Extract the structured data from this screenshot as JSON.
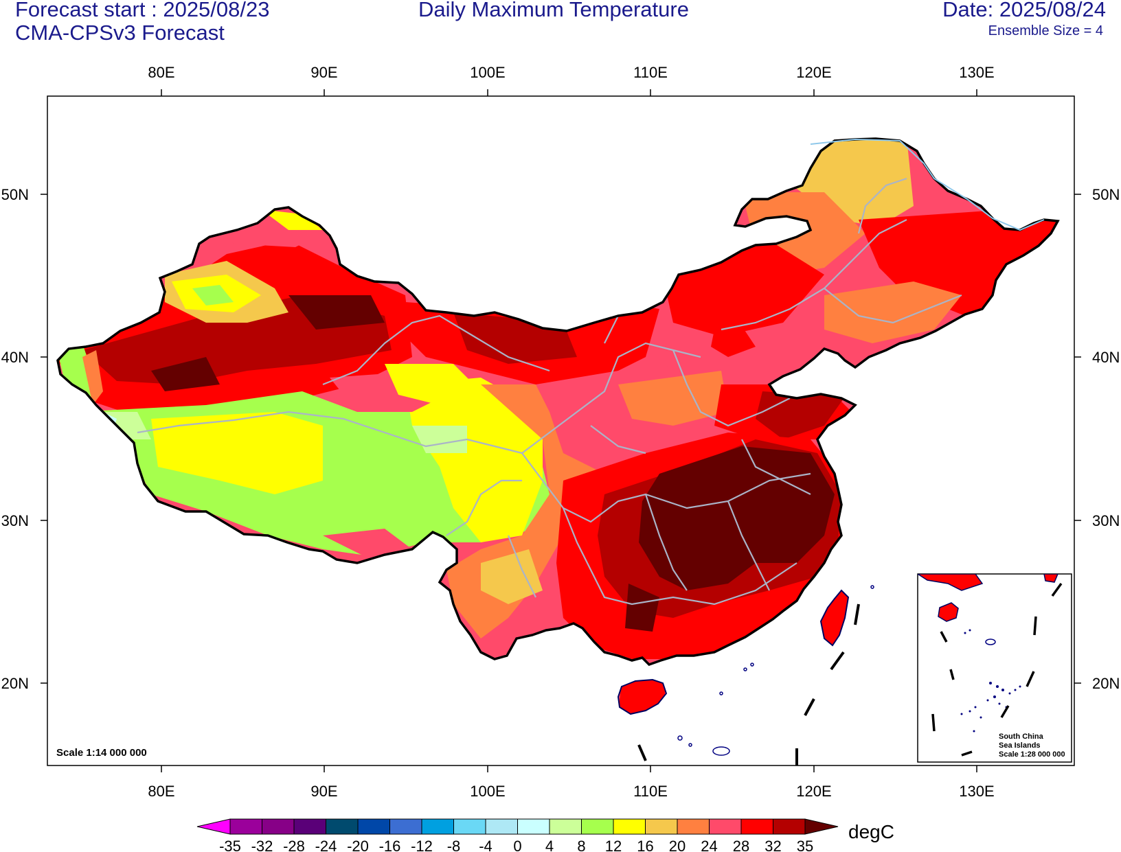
{
  "header": {
    "forecast_start": "Forecast start : 2025/08/23",
    "model": "CMA-CPSv3 Forecast",
    "title": "Daily Maximum Temperature",
    "date": "Date: 2025/08/24",
    "ensemble": "Ensemble Size = 4"
  },
  "map": {
    "lon_ticks": [
      "80E",
      "90E",
      "100E",
      "110E",
      "120E",
      "130E"
    ],
    "lat_ticks": [
      "50N",
      "40N",
      "30N",
      "20N"
    ],
    "scale_main": "Scale 1:14 000 000",
    "inset_title_1": "South China",
    "inset_title_2": "Sea Islands",
    "inset_scale": "Scale 1:28 000 000"
  },
  "colorbar": {
    "unit": "degC",
    "labels": [
      "-35",
      "-32",
      "-28",
      "-24",
      "-20",
      "-16",
      "-12",
      "-8",
      "-4",
      "0",
      "4",
      "8",
      "12",
      "16",
      "20",
      "24",
      "28",
      "32",
      "35"
    ],
    "colors": [
      "#ff00ff",
      "#9b009b",
      "#870087",
      "#5a0078",
      "#004a6e",
      "#0047a8",
      "#3c6ed2",
      "#00a0e0",
      "#6ad8f5",
      "#aee8f5",
      "#caffff",
      "#ccff99",
      "#a6ff4d",
      "#ffff00",
      "#f5c84c",
      "#ff8040",
      "#ff4a6a",
      "#ff0000",
      "#b40000",
      "#640000"
    ]
  },
  "legend_colors": {
    "hottest": "#640000",
    "very_hot": "#b40000",
    "hot": "#ff0000",
    "warm": "#ff4a6a",
    "mild_warm": "#ff8040",
    "mild": "#f5c84c",
    "cool": "#ffff00",
    "cooler": "#a6ff4d",
    "cold": "#ccff99"
  }
}
